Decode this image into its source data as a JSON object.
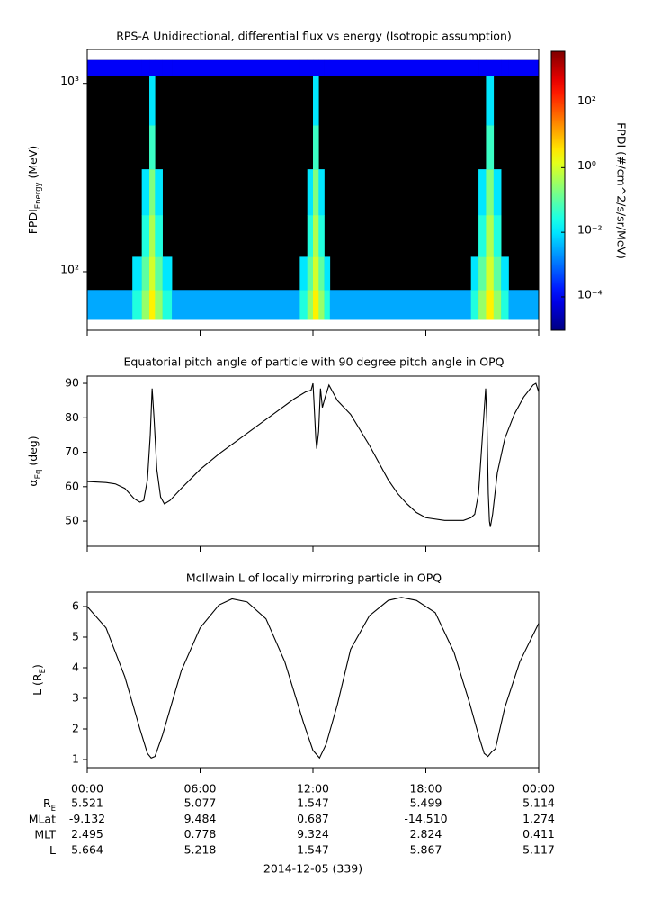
{
  "chart_data": [
    {
      "type": "heatmap",
      "title": "RPS-A Unidirectional, differential flux vs energy (Isotropic assumption)",
      "ylabel": {
        "main": "FPDI",
        "sub": "Energy",
        "rest": " (MeV)"
      },
      "colorbar_label": "FPDI (#/cm^2/s/sr/MeV)",
      "xlim": [
        0,
        24
      ],
      "log_y": true,
      "ylim": [
        48.9,
        1514
      ],
      "yticks": [
        {
          "value": 100,
          "label": "10²"
        },
        {
          "value": 1000,
          "label": "10³"
        }
      ],
      "clim": [
        9.3e-06,
        4000
      ],
      "log_color": true,
      "cticks": [
        {
          "value": 0.0001,
          "label": "10⁻⁴"
        },
        {
          "value": 0.01,
          "label": "10⁻²"
        },
        {
          "value": 1,
          "label": "10⁰"
        },
        {
          "value": 100,
          "label": "10²"
        }
      ],
      "x": [
        0,
        2.4,
        2.9,
        3.3,
        3.6,
        4.0,
        4.5,
        11.3,
        11.7,
        12.0,
        12.3,
        12.6,
        12.9,
        20.4,
        20.8,
        21.2,
        21.6,
        22.0,
        22.4,
        24
      ],
      "y": [
        55.7,
        80,
        120,
        200,
        350,
        600,
        1100,
        1330
      ],
      "z": [
        [
          0.003,
          0.03,
          0.3,
          3,
          0.3,
          0.03,
          0.003,
          0.03,
          0.3,
          3,
          0.3,
          0.03,
          0.003,
          0.03,
          0.3,
          3,
          0.3,
          0.03,
          0.003
        ],
        [
          null,
          0.01,
          0.1,
          1,
          0.1,
          0.01,
          null,
          0.01,
          0.1,
          1,
          0.1,
          0.01,
          null,
          0.01,
          0.1,
          1,
          0.1,
          0.01,
          null
        ],
        [
          null,
          null,
          0.03,
          0.5,
          0.03,
          null,
          null,
          null,
          0.03,
          0.5,
          0.03,
          null,
          null,
          null,
          0.03,
          0.5,
          0.03,
          null,
          null
        ],
        [
          null,
          null,
          0.01,
          0.2,
          0.01,
          null,
          null,
          null,
          0.01,
          0.2,
          0.01,
          null,
          null,
          null,
          0.01,
          0.2,
          0.01,
          null,
          null
        ],
        [
          null,
          null,
          null,
          0.05,
          null,
          null,
          null,
          null,
          null,
          0.05,
          null,
          null,
          null,
          null,
          null,
          0.05,
          null,
          null,
          null
        ],
        [
          null,
          null,
          null,
          0.01,
          null,
          null,
          null,
          null,
          null,
          0.01,
          null,
          null,
          null,
          null,
          null,
          0.01,
          null,
          null,
          null
        ],
        [
          0.0001,
          0.0001,
          0.0001,
          0.0001,
          0.0001,
          0.0001,
          0.0001,
          0.0001,
          0.0001,
          0.0001,
          0.0001,
          0.0001,
          0.0001,
          0.0001,
          0.0001,
          0.0001,
          0.0001,
          0.0001,
          0.0001
        ]
      ]
    },
    {
      "type": "line",
      "title": "Equatorial pitch angle of particle with 90 degree pitch angle in OPQ",
      "ylabel": {
        "main": "α",
        "sub": "Eq",
        "rest": " (deg)"
      },
      "color": "#000000",
      "xlim": [
        0,
        24
      ],
      "ylim": [
        42.7,
        92.1
      ],
      "yticks": [
        50,
        60,
        70,
        80,
        90
      ],
      "x": [
        0,
        1,
        1.5,
        2,
        2.5,
        2.8,
        3.0,
        3.2,
        3.35,
        3.45,
        3.55,
        3.7,
        3.9,
        4.1,
        4.4,
        5,
        6,
        7,
        8,
        9,
        10,
        11,
        11.6,
        11.9,
        12.0,
        12.05,
        12.15,
        12.2,
        12.3,
        12.4,
        12.5,
        12.65,
        12.85,
        13.1,
        13.3,
        14,
        15,
        16,
        16.5,
        17,
        17.5,
        18,
        19,
        20,
        20.4,
        20.6,
        20.8,
        20.95,
        21.1,
        21.18,
        21.25,
        21.32,
        21.38,
        21.43,
        21.55,
        21.8,
        22.2,
        22.7,
        23.2,
        23.7,
        23.85,
        24
      ],
      "values": [
        61.5,
        61.2,
        60.8,
        59.5,
        56.5,
        55.5,
        56,
        62,
        75,
        88.5,
        80,
        65,
        57,
        55,
        56,
        59.5,
        65,
        69.5,
        73.5,
        77.5,
        81.5,
        85.5,
        87.5,
        88,
        90,
        85,
        74,
        71,
        76,
        88.5,
        83,
        86,
        89.5,
        87,
        85,
        81,
        72,
        62,
        58,
        55,
        52.5,
        51,
        50.2,
        50.2,
        51,
        52,
        58,
        70,
        82,
        88.5,
        78,
        58,
        50,
        48.3,
        52,
        64,
        74,
        81,
        86,
        89.5,
        90,
        87.5
      ]
    },
    {
      "type": "line",
      "title": "McIlwain L of locally mirroring particle in OPQ",
      "ylabel": {
        "main": "L (R",
        "sub": "E",
        "rest": ")"
      },
      "color": "#000000",
      "xlim": [
        0,
        24
      ],
      "ylim": [
        0.735,
        6.47
      ],
      "yticks": [
        1,
        2,
        3,
        4,
        5,
        6
      ],
      "xticks": [
        {
          "value": 0,
          "label": "00:00"
        },
        {
          "value": 6,
          "label": "06:00"
        },
        {
          "value": 12,
          "label": "12:00"
        },
        {
          "value": 18,
          "label": "18:00"
        },
        {
          "value": 24,
          "label": "00:00"
        }
      ],
      "x": [
        0,
        1,
        2,
        2.8,
        3.2,
        3.4,
        3.6,
        4,
        5,
        6,
        7,
        7.7,
        8.5,
        9.5,
        10.5,
        11.5,
        12.0,
        12.35,
        12.7,
        13.3,
        14,
        15,
        16,
        16.7,
        17.5,
        18.5,
        19.5,
        20.3,
        20.8,
        21.1,
        21.3,
        21.5,
        21.7,
        22.2,
        23,
        24
      ],
      "values": [
        6.0,
        5.3,
        3.7,
        2.0,
        1.2,
        1.05,
        1.1,
        1.8,
        3.9,
        5.3,
        6.05,
        6.25,
        6.15,
        5.6,
        4.2,
        2.2,
        1.3,
        1.05,
        1.5,
        2.8,
        4.6,
        5.7,
        6.2,
        6.3,
        6.2,
        5.8,
        4.5,
        2.9,
        1.8,
        1.2,
        1.1,
        1.25,
        1.35,
        2.7,
        4.2,
        5.45
      ]
    }
  ],
  "ephemeris": {
    "rows": [
      {
        "label": {
          "main": "R",
          "sub": "E"
        },
        "values": [
          "5.521",
          "5.077",
          "1.547",
          "5.499",
          "5.114"
        ]
      },
      {
        "label": {
          "main": "MLat"
        },
        "values": [
          "-9.132",
          "9.484",
          "0.687",
          "-14.510",
          "1.274"
        ]
      },
      {
        "label": {
          "main": "MLT"
        },
        "values": [
          "2.495",
          "0.778",
          "9.324",
          "2.824",
          "0.411"
        ]
      },
      {
        "label": {
          "main": "L"
        },
        "values": [
          "5.664",
          "5.218",
          "1.547",
          "5.867",
          "5.117"
        ]
      }
    ],
    "date": "2014-12-05 (339)"
  }
}
